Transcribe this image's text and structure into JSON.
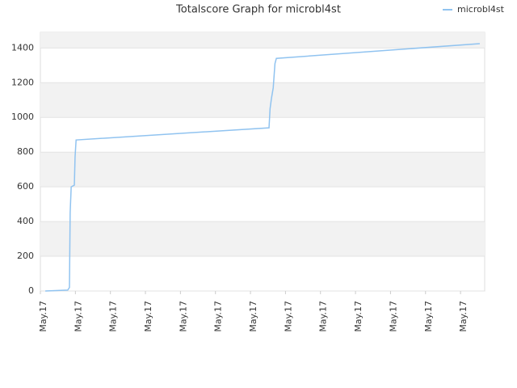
{
  "chart_data": {
    "type": "line",
    "title": "Totalscore Graph for microbl4st",
    "x": [
      0.14,
      0.78,
      0.83,
      0.85,
      0.88,
      0.97,
      0.99,
      1.02,
      6.53,
      6.56,
      6.6,
      6.65,
      6.7,
      6.74,
      12.55
    ],
    "series": [
      {
        "name": "microbl4st",
        "color": "#90c3f0",
        "values": [
          0,
          5,
          20,
          450,
          600,
          610,
          770,
          870,
          940,
          1050,
          1110,
          1170,
          1310,
          1340,
          1425
        ]
      }
    ],
    "xlim": [
      0,
      12.69
    ],
    "xticks": [
      {
        "value": 0,
        "label": "May.17"
      },
      {
        "value": 1,
        "label": "May.17"
      },
      {
        "value": 2,
        "label": "May.17"
      },
      {
        "value": 3,
        "label": "May.17"
      },
      {
        "value": 4,
        "label": "May.17"
      },
      {
        "value": 5,
        "label": "May.17"
      },
      {
        "value": 6,
        "label": "May.17"
      },
      {
        "value": 7,
        "label": "May.17"
      },
      {
        "value": 8,
        "label": "May.17"
      },
      {
        "value": 9,
        "label": "May.17"
      },
      {
        "value": 10,
        "label": "May.17"
      },
      {
        "value": 11,
        "label": "May.17"
      },
      {
        "value": 12,
        "label": "May.17"
      }
    ],
    "ylim": [
      0,
      1490
    ],
    "yticks": [
      0,
      200,
      400,
      600,
      800,
      1000,
      1200,
      1400
    ],
    "grid": true,
    "legend": "top-right"
  }
}
